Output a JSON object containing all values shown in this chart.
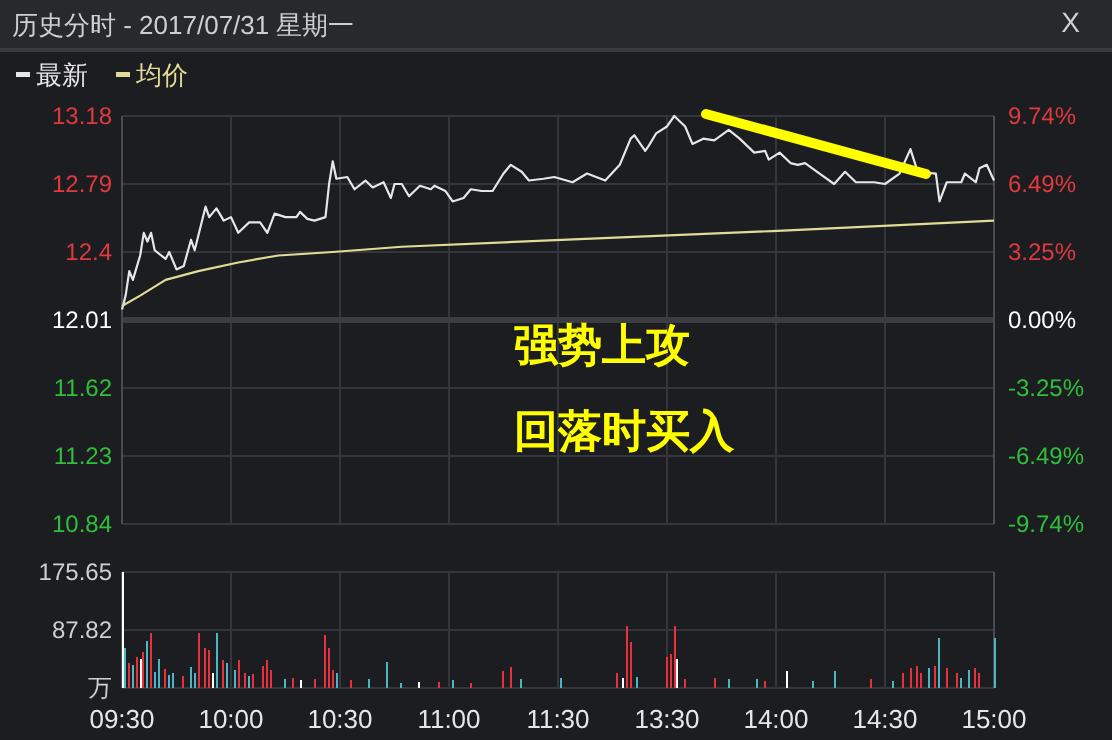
{
  "chart_data": [
    {
      "type": "line",
      "title": "历史分时 - 2017/07/31 星期一",
      "legend": "top left",
      "grid": true,
      "tick_labels": "y",
      "categories": [
        null,
        null,
        null,
        null,
        null,
        null,
        null,
        null,
        null,
        null,
        null,
        null,
        null,
        null,
        null,
        null,
        null,
        null,
        null,
        null,
        null,
        null,
        null,
        null,
        null,
        null,
        null,
        null,
        null,
        null,
        null,
        null,
        null,
        null,
        null,
        null,
        null,
        null,
        null,
        null,
        null,
        null,
        null,
        null,
        null,
        null,
        null,
        null,
        null,
        null,
        null,
        null,
        null,
        null,
        null,
        null,
        null,
        null,
        null,
        null,
        null,
        null,
        null,
        null,
        null,
        null,
        null,
        null,
        null,
        null,
        null,
        null,
        null,
        null,
        null,
        null,
        null,
        null,
        null,
        null,
        null,
        null,
        null,
        null,
        null,
        null,
        null,
        null,
        null,
        null,
        null,
        null,
        null,
        null,
        null,
        null,
        null,
        null,
        null,
        null,
        null,
        null,
        null,
        null,
        null,
        null,
        null,
        null,
        null,
        null,
        null,
        null,
        null,
        null,
        null,
        null,
        null,
        null,
        null,
        null,
        null,
        null,
        null,
        null,
        null,
        null,
        null,
        null,
        null,
        null,
        null,
        null,
        null,
        null,
        null,
        null,
        null,
        null,
        null,
        null,
        null,
        null,
        null,
        null,
        null,
        null,
        null,
        null,
        null,
        null,
        null,
        null,
        null,
        null,
        null,
        null,
        null,
        null,
        null,
        null,
        null,
        null,
        null,
        null,
        null,
        null,
        null,
        null,
        null,
        null,
        null,
        null,
        null,
        null,
        null,
        null,
        null,
        null,
        null,
        null,
        null,
        null,
        null,
        null,
        null,
        null,
        null,
        null,
        null,
        null,
        null,
        null,
        null,
        null,
        null,
        null,
        null,
        null,
        null,
        null,
        null,
        null,
        null,
        null,
        null,
        null,
        null,
        null,
        null,
        null,
        null,
        null,
        null,
        null,
        null,
        null,
        null,
        null,
        null,
        null,
        null,
        null,
        null,
        null,
        null,
        null,
        null,
        null,
        null,
        null,
        null,
        null,
        null,
        null,
        null,
        null,
        null,
        null,
        null,
        null,
        null
      ],
      "ylim": [
        10.84,
        13.18
      ],
      "yticks": [
        10.84,
        11.23,
        11.62,
        12.01,
        12.4,
        12.79,
        13.18
      ],
      "y2lim": [
        -9.74,
        9.74
      ],
      "y2ticks": [
        {
          "value": -9.74,
          "label": "-9.74%"
        },
        {
          "value": -6.49,
          "label": "-6.49%"
        },
        {
          "value": -3.25,
          "label": "-3.25%"
        },
        {
          "value": 0,
          "label": "0.00%"
        },
        {
          "value": 3.25,
          "label": "3.25%"
        },
        {
          "value": 6.49,
          "label": "6.49%"
        },
        {
          "value": 9.74,
          "label": "9.74%"
        }
      ],
      "ref_lines": [
        {
          "axis": "y",
          "value": 12.01,
          "color": "#3c3d42"
        }
      ],
      "annotations": [
        "X",
        "强势上攻",
        "回落时买入"
      ],
      "series": [
        {
          "name": "最新",
          "color": "#e6e6e6",
          "values": [
            12.07,
            12.15,
            12.29,
            12.24,
            null,
            12.38,
            12.51,
            12.46,
            12.51,
            12.41,
            null,
            null,
            12.36,
            12.4,
            null,
            12.3,
            null,
            12.32,
            null,
            12.47,
            12.41,
            null,
            null,
            12.66,
            12.6,
            null,
            12.65,
            null,
            12.58,
            null,
            12.6,
            null,
            12.51,
            null,
            null,
            12.57,
            null,
            null,
            12.57,
            null,
            12.51,
            null,
            12.62,
            null,
            null,
            12.6,
            null,
            null,
            12.6,
            12.63,
            null,
            12.59,
            null,
            12.58,
            null,
            null,
            12.6,
            12.79,
            12.92,
            12.82,
            null,
            null,
            12.83,
            null,
            12.76,
            null,
            null,
            12.81,
            null,
            12.77,
            null,
            null,
            12.8,
            null,
            12.71,
            12.79,
            null,
            12.79,
            null,
            12.72,
            null,
            null,
            12.78,
            null,
            null,
            12.76,
            12.78,
            null,
            null,
            12.75,
            null,
            12.69,
            null,
            null,
            12.71,
            null,
            12.76,
            null,
            null,
            12.75,
            null,
            null,
            12.75,
            null,
            null,
            12.85,
            null,
            12.9,
            null,
            null,
            12.86,
            null,
            12.81,
            null,
            null,
            null,
            12.82,
            null,
            null,
            12.83,
            null,
            null,
            null,
            null,
            12.8,
            null,
            null,
            null,
            12.85,
            null,
            null,
            null,
            null,
            12.81,
            null,
            null,
            null,
            12.9,
            null,
            null,
            13.05,
            13.07,
            null,
            null,
            12.98,
            13.01,
            null,
            13.08,
            null,
            null,
            13.12,
            null,
            13.18,
            null,
            null,
            13.12,
            null,
            13.02,
            null,
            null,
            13.05,
            null,
            null,
            13.04,
            null,
            13.07,
            null,
            13.1,
            null,
            null,
            13.05,
            null,
            null,
            null,
            12.97,
            null,
            null,
            12.98,
            12.93,
            null,
            null,
            12.97,
            null,
            null,
            12.91,
            null,
            12.9,
            null,
            12.91,
            null,
            null,
            null,
            12.85,
            null,
            null,
            null,
            12.79,
            null,
            null,
            12.86,
            null,
            null,
            12.8,
            null,
            null,
            null,
            null,
            12.8,
            null,
            null,
            12.79,
            null,
            null,
            null,
            12.85,
            null,
            null,
            12.99,
            null,
            12.86,
            null,
            null,
            null,
            null,
            12.85,
            12.69,
            null,
            12.8,
            null,
            null,
            null,
            12.8,
            12.85,
            null,
            null,
            12.8,
            12.88,
            null,
            12.9,
            null,
            12.81
          ]
        },
        {
          "name": "均价",
          "color": "#e0dc98",
          "values": [
            12.09,
            null,
            null,
            null,
            null,
            12.15,
            null,
            null,
            null,
            null,
            null,
            null,
            12.24,
            null,
            null,
            null,
            null,
            null,
            null,
            null,
            null,
            12.29,
            null,
            null,
            null,
            null,
            null,
            null,
            null,
            null,
            null,
            null,
            12.34,
            null,
            null,
            null,
            null,
            null,
            null,
            null,
            null,
            null,
            null,
            12.38,
            null,
            null,
            null,
            null,
            null,
            null,
            null,
            null,
            null,
            null,
            null,
            null,
            null,
            null,
            12.4,
            null,
            null,
            null,
            null,
            null,
            null,
            null,
            null,
            null,
            null,
            null,
            null,
            null,
            null,
            null,
            null,
            null,
            null,
            12.43,
            null,
            null,
            null,
            null,
            null,
            null,
            null,
            null,
            null,
            null,
            null,
            null,
            null,
            null,
            null,
            null,
            null,
            null,
            null,
            null,
            null,
            null,
            null,
            null,
            null,
            null,
            null,
            null,
            null,
            null,
            null,
            null,
            null,
            null,
            null,
            null,
            null,
            null,
            null,
            null,
            null,
            null,
            null,
            12.47,
            null,
            null,
            null,
            null,
            null,
            null,
            null,
            null,
            null,
            null,
            null,
            null,
            null,
            null,
            null,
            null,
            null,
            null,
            null,
            null,
            null,
            null,
            null,
            null,
            null,
            null,
            null,
            null,
            null,
            null,
            null,
            null,
            null,
            null,
            null,
            null,
            null,
            null,
            null,
            null,
            null,
            null,
            null,
            null,
            null,
            null,
            null,
            null,
            null,
            null,
            null,
            null,
            null,
            null,
            null,
            null,
            null,
            12.52,
            null,
            null,
            null,
            null,
            null,
            null,
            null,
            null,
            null,
            null,
            null,
            null,
            null,
            null,
            null,
            null,
            null,
            null,
            null,
            null,
            null,
            null,
            null,
            null,
            null,
            null,
            null,
            null,
            null,
            null,
            null,
            null,
            null,
            null,
            null,
            null,
            null,
            null,
            null,
            null,
            null,
            null,
            null,
            null,
            null,
            null,
            null,
            null,
            null,
            null,
            null,
            null,
            null,
            null,
            null,
            null,
            null,
            null,
            null,
            null,
            12.58
          ]
        }
      ]
    },
    {
      "type": "bar",
      "grid": true,
      "categories": [
        "09:30",
        null,
        null,
        null,
        null,
        null,
        null,
        null,
        null,
        null,
        null,
        null,
        null,
        null,
        null,
        null,
        null,
        null,
        null,
        null,
        null,
        null,
        null,
        null,
        null,
        null,
        null,
        null,
        null,
        null,
        "10:00",
        null,
        null,
        null,
        null,
        null,
        null,
        null,
        null,
        null,
        null,
        null,
        null,
        null,
        null,
        null,
        null,
        null,
        null,
        null,
        null,
        null,
        null,
        null,
        null,
        null,
        null,
        null,
        null,
        null,
        "10:30",
        null,
        null,
        null,
        null,
        null,
        null,
        null,
        null,
        null,
        null,
        null,
        null,
        null,
        null,
        null,
        null,
        null,
        null,
        null,
        null,
        null,
        null,
        null,
        null,
        null,
        null,
        null,
        null,
        null,
        "11:00",
        null,
        null,
        null,
        null,
        null,
        null,
        null,
        null,
        null,
        null,
        null,
        null,
        null,
        null,
        null,
        null,
        null,
        null,
        null,
        null,
        null,
        null,
        null,
        null,
        null,
        null,
        null,
        null,
        null,
        "11:30",
        null,
        null,
        null,
        null,
        null,
        null,
        null,
        null,
        null,
        null,
        null,
        null,
        null,
        null,
        null,
        null,
        null,
        null,
        null,
        null,
        null,
        null,
        null,
        null,
        null,
        null,
        null,
        null,
        null,
        "13:30",
        null,
        null,
        null,
        null,
        null,
        null,
        null,
        null,
        null,
        null,
        null,
        null,
        null,
        null,
        null,
        null,
        null,
        null,
        null,
        null,
        null,
        null,
        null,
        null,
        null,
        null,
        null,
        null,
        null,
        "14:00",
        null,
        null,
        null,
        null,
        null,
        null,
        null,
        null,
        null,
        null,
        null,
        null,
        null,
        null,
        null,
        null,
        null,
        null,
        null,
        null,
        null,
        null,
        null,
        null,
        null,
        null,
        null,
        null,
        null,
        "14:30",
        null,
        null,
        null,
        null,
        null,
        null,
        null,
        null,
        null,
        null,
        null,
        null,
        null,
        null,
        null,
        null,
        null,
        null,
        null,
        null,
        null,
        null,
        null,
        null,
        null,
        null,
        null,
        null,
        null,
        "15:00"
      ],
      "ylim": [
        0,
        175.65
      ],
      "yticks": [
        {
          "value": 0,
          "label": "万"
        },
        87.82,
        175.65
      ],
      "values": [
        175.65,
        60,
        38,
        35,
        47,
        44,
        55,
        71,
        84,
        24,
        44,
        null,
        29,
        19,
        22,
        null,
        null,
        18,
        null,
        32,
        22,
        84,
        null,
        60,
        58,
        22,
        84,
        null,
        43,
        38,
        null,
        28,
        42,
        null,
        22,
        18,
        21,
        null,
        null,
        33,
        43,
        28,
        null,
        null,
        null,
        13,
        null,
        15,
        null,
        12,
        null,
        null,
        null,
        13,
        null,
        null,
        80,
        61,
        28,
        23,
        null,
        null,
        null,
        12,
        null,
        null,
        null,
        null,
        14,
        null,
        null,
        null,
        null,
        40,
        null,
        null,
        null,
        8,
        null,
        null,
        null,
        null,
        9,
        null,
        null,
        null,
        null,
        9,
        null,
        null,
        null,
        12,
        null,
        null,
        null,
        null,
        8,
        null,
        null,
        null,
        null,
        null,
        null,
        null,
        null,
        26,
        null,
        32,
        null,
        null,
        14,
        null,
        null,
        null,
        null,
        null,
        null,
        null,
        null,
        null,
        null,
        15,
        null,
        null,
        null,
        null,
        null,
        null,
        null,
        null,
        null,
        null,
        null,
        null,
        null,
        null,
        23,
        null,
        15,
        94,
        70,
        null,
        16,
        null,
        null,
        null,
        null,
        null,
        null,
        null,
        47,
        51,
        94,
        44,
        null,
        13,
        null,
        null,
        null,
        null,
        null,
        null,
        null,
        15,
        null,
        null,
        null,
        13,
        null,
        null,
        null,
        null,
        null,
        null,
        null,
        13,
        null,
        10,
        null,
        null,
        null,
        null,
        null,
        26,
        null,
        null,
        null,
        null,
        null,
        null,
        10,
        null,
        null,
        null,
        null,
        null,
        25,
        null,
        null,
        null,
        null,
        null,
        null,
        null,
        null,
        null,
        13,
        null,
        null,
        null,
        null,
        null,
        10,
        null,
        null,
        23,
        null,
        31,
        null,
        33,
        23,
        null,
        31,
        null,
        33,
        76,
        null,
        30,
        null,
        null,
        23,
        15,
        null,
        28,
        null,
        30,
        23,
        null,
        null,
        null,
        76
      ],
      "colors": [
        "#ffffff",
        "#4db6c6",
        "#e8313a",
        "#4db6c6",
        "#e8313a",
        "#ffffff",
        "#e8313a",
        "#4db6c6",
        "#e8313a",
        "#4db6c6",
        "#4db6c6",
        null,
        "#e8313a",
        "#4db6c6",
        "#4db6c6",
        null,
        null,
        "#e8313a",
        null,
        "#4db6c6",
        "#4db6c6",
        "#e8313a",
        null,
        "#e8313a",
        "#e8313a",
        "#ffffff",
        "#4db6c6",
        null,
        "#e8313a",
        "#4db6c6",
        null,
        "#4db6c6",
        "#e8313a",
        null,
        "#e8313a",
        "#4db6c6",
        "#e8313a",
        null,
        null,
        "#e8313a",
        "#e8313a",
        "#e8313a",
        null,
        null,
        null,
        "#4db6c6",
        null,
        "#e8313a",
        null,
        "#ffffff",
        null,
        null,
        null,
        "#e8313a",
        null,
        null,
        "#e8313a",
        "#e8313a",
        "#e8313a",
        "#4db6c6",
        null,
        null,
        null,
        "#e8313a",
        null,
        null,
        null,
        null,
        "#4db6c6",
        null,
        null,
        null,
        null,
        "#4db6c6",
        null,
        null,
        null,
        "#4db6c6",
        null,
        null,
        null,
        null,
        "#ffffff",
        null,
        null,
        null,
        null,
        "#e8313a",
        null,
        null,
        null,
        "#4db6c6",
        null,
        null,
        null,
        null,
        "#e8313a",
        null,
        null,
        null,
        null,
        null,
        null,
        null,
        null,
        "#e8313a",
        null,
        "#e8313a",
        null,
        null,
        "#4db6c6",
        null,
        null,
        null,
        null,
        null,
        null,
        null,
        null,
        null,
        null,
        "#4db6c6",
        null,
        null,
        null,
        null,
        null,
        null,
        null,
        null,
        null,
        null,
        null,
        null,
        null,
        null,
        "#e8313a",
        null,
        "#ffffff",
        "#e8313a",
        "#e8313a",
        null,
        "#4db6c6",
        null,
        null,
        null,
        null,
        null,
        null,
        null,
        "#e8313a",
        "#e8313a",
        "#e8313a",
        "#ffffff",
        null,
        "#e8313a",
        null,
        null,
        null,
        null,
        null,
        null,
        null,
        "#e8313a",
        null,
        null,
        null,
        "#4db6c6",
        null,
        null,
        null,
        null,
        null,
        null,
        null,
        "#4db6c6",
        null,
        "#e8313a",
        null,
        null,
        null,
        null,
        null,
        "#ffffff",
        null,
        null,
        null,
        null,
        null,
        null,
        "#4db6c6",
        null,
        null,
        null,
        null,
        null,
        "#4db6c6",
        null,
        null,
        null,
        null,
        null,
        null,
        null,
        null,
        null,
        "#e8313a",
        null,
        null,
        null,
        null,
        null,
        "#4db6c6",
        null,
        null,
        "#e8313a",
        null,
        "#e8313a",
        null,
        "#e8313a",
        "#e8313a",
        null,
        "#4db6c6",
        null,
        "#e8313a",
        "#4db6c6",
        null,
        "#e8313a",
        null,
        null,
        "#e8313a",
        "#4db6c6",
        null,
        "#4db6c6",
        null,
        "#e8313a",
        "#e8313a",
        null,
        null,
        null,
        "#4db6c6"
      ]
    }
  ]
}
